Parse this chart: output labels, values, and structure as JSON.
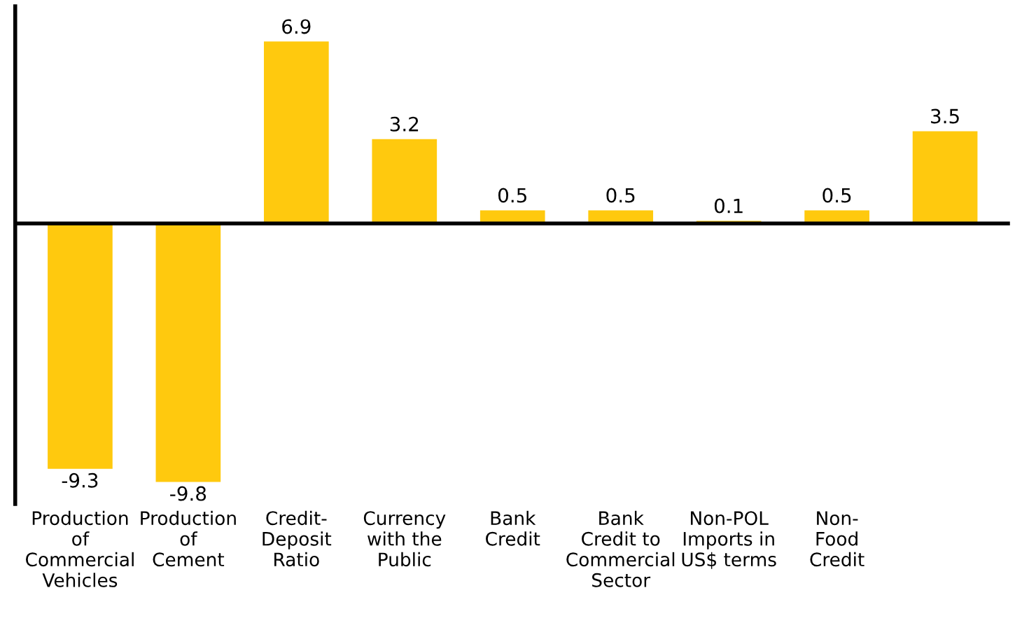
{
  "chart_data": {
    "type": "bar",
    "categories": [
      "Production\nof\nCommercial\nVehicles",
      "Production\nof\nCement",
      "Credit-\nDeposit\nRatio",
      "Currency\nwith the\nPublic",
      "Bank\nCredit",
      "Bank\nCredit to\nCommercial\nSector",
      "Non-POL\nImports in\nUS$ terms",
      "Non-\nFood\nCredit",
      null
    ],
    "values": [
      -9.3,
      -9.8,
      6.9,
      3.2,
      0.5,
      0.5,
      0.1,
      0.5,
      3.5
    ],
    "color": "#ffc90e",
    "data_labels": true,
    "tick_labels": "x",
    "grid": false,
    "legend": false
  }
}
